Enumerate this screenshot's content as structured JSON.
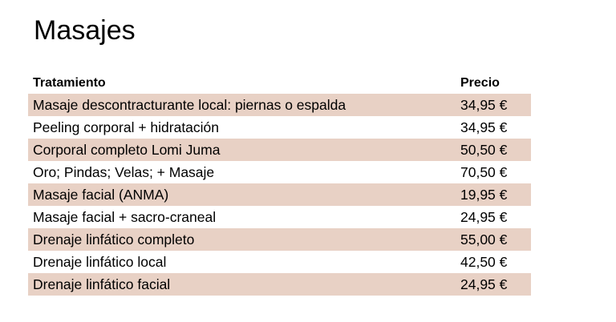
{
  "title": "Masajes",
  "table": {
    "headers": [
      "Tratamiento",
      "Precio"
    ],
    "stripe_color": "#e8d1c5",
    "rows": [
      {
        "treatment": "Masaje descontracturante local: piernas o espalda",
        "price": "34,95 €"
      },
      {
        "treatment": "Peeling corporal + hidratación",
        "price": "34,95 €"
      },
      {
        "treatment": "Corporal completo Lomi Juma",
        "price": "50,50 €"
      },
      {
        "treatment": "Oro; Pindas; Velas; + Masaje",
        "price": "70,50 €"
      },
      {
        "treatment": "Masaje facial (ANMA)",
        "price": "19,95 €"
      },
      {
        "treatment": "Masaje facial + sacro-craneal",
        "price": "24,95 €"
      },
      {
        "treatment": "Drenaje linfático completo",
        "price": "55,00 €"
      },
      {
        "treatment": "Drenaje linfático local",
        "price": "42,50 €"
      },
      {
        "treatment": "Drenaje linfático facial",
        "price": "24,95 €"
      }
    ]
  }
}
